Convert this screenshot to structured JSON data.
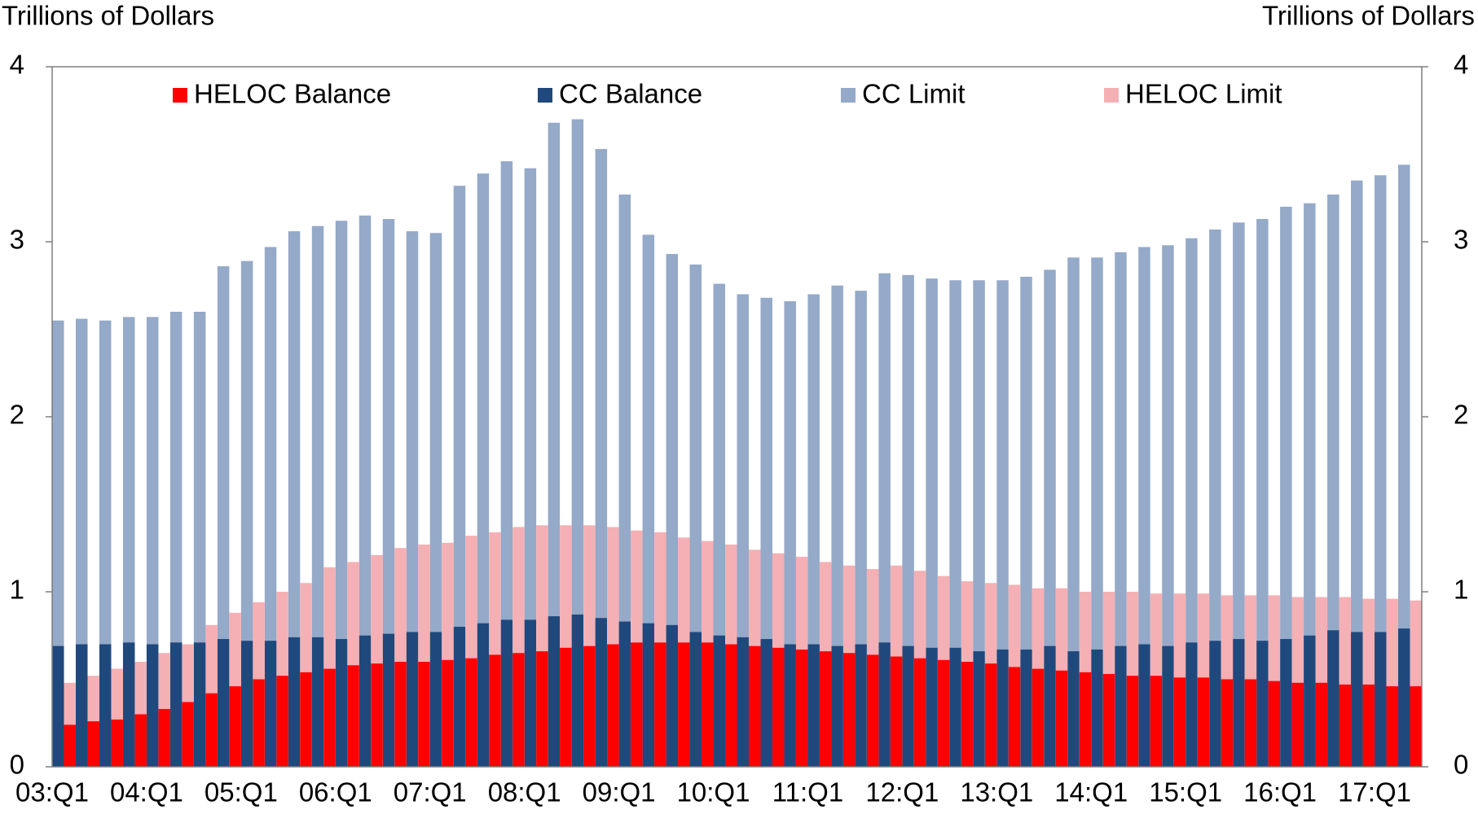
{
  "chart_data": {
    "type": "bar",
    "y_label": "Trillions of Dollars",
    "y2_label": "Trillions of Dollars",
    "categories": [
      "03:Q1",
      null,
      null,
      null,
      "04:Q1",
      null,
      null,
      null,
      "05:Q1",
      null,
      null,
      null,
      "06:Q1",
      null,
      null,
      null,
      "07:Q1",
      null,
      null,
      null,
      "08:Q1",
      null,
      null,
      null,
      "09:Q1",
      null,
      null,
      null,
      "10:Q1",
      null,
      null,
      null,
      "11:Q1",
      null,
      null,
      null,
      "12:Q1",
      null,
      null,
      null,
      "13:Q1",
      null,
      null,
      null,
      "14:Q1",
      null,
      null,
      null,
      "15:Q1",
      null,
      null,
      null,
      "16:Q1",
      null,
      null,
      null,
      "17:Q1",
      null
    ],
    "series": [
      {
        "name": "HELOC Balance",
        "color": "#ff0000",
        "values": [
          0.24,
          0.26,
          0.27,
          0.3,
          0.33,
          0.37,
          0.42,
          0.46,
          0.5,
          0.52,
          0.54,
          0.56,
          0.58,
          0.59,
          0.6,
          0.6,
          0.61,
          0.62,
          0.64,
          0.65,
          0.66,
          0.68,
          0.69,
          0.7,
          0.71,
          0.71,
          0.71,
          0.71,
          0.7,
          0.69,
          0.68,
          0.67,
          0.66,
          0.65,
          0.64,
          0.63,
          0.62,
          0.61,
          0.6,
          0.59,
          0.57,
          0.56,
          0.55,
          0.54,
          0.53,
          0.52,
          0.52,
          0.51,
          0.51,
          0.5,
          0.5,
          0.49,
          0.48,
          0.48,
          0.47,
          0.47,
          0.46,
          0.46
        ]
      },
      {
        "name": "CC Balance",
        "color": "#1f497d",
        "values": [
          0.69,
          0.7,
          0.7,
          0.71,
          0.7,
          0.71,
          0.71,
          0.73,
          0.72,
          0.72,
          0.74,
          0.74,
          0.73,
          0.75,
          0.76,
          0.77,
          0.77,
          0.8,
          0.82,
          0.84,
          0.84,
          0.86,
          0.87,
          0.85,
          0.83,
          0.82,
          0.81,
          0.77,
          0.75,
          0.74,
          0.73,
          0.7,
          0.7,
          0.69,
          0.7,
          0.71,
          0.69,
          0.68,
          0.68,
          0.66,
          0.67,
          0.67,
          0.69,
          0.66,
          0.67,
          0.69,
          0.7,
          0.69,
          0.71,
          0.72,
          0.73,
          0.72,
          0.73,
          0.75,
          0.78,
          0.77,
          0.77,
          0.79
        ]
      },
      {
        "name": "CC Limit",
        "color": "#95a9c8",
        "values": [
          2.55,
          2.56,
          2.55,
          2.57,
          2.57,
          2.6,
          2.6,
          2.86,
          2.89,
          2.97,
          3.06,
          3.09,
          3.12,
          3.15,
          3.13,
          3.06,
          3.05,
          3.32,
          3.39,
          3.46,
          3.42,
          3.68,
          3.7,
          3.53,
          3.27,
          3.04,
          2.93,
          2.87,
          2.76,
          2.7,
          2.68,
          2.66,
          2.7,
          2.75,
          2.72,
          2.82,
          2.81,
          2.79,
          2.78,
          2.78,
          2.78,
          2.8,
          2.84,
          2.91,
          2.91,
          2.94,
          2.97,
          2.98,
          3.02,
          3.07,
          3.11,
          3.13,
          3.2,
          3.22,
          3.27,
          3.35,
          3.38,
          3.44
        ]
      },
      {
        "name": "HELOC Limit",
        "color": "#f4b0b4",
        "values": [
          0.48,
          0.52,
          0.56,
          0.6,
          0.65,
          0.7,
          0.81,
          0.88,
          0.94,
          1.0,
          1.05,
          1.14,
          1.17,
          1.21,
          1.25,
          1.27,
          1.28,
          1.32,
          1.34,
          1.37,
          1.38,
          1.38,
          1.38,
          1.37,
          1.35,
          1.34,
          1.31,
          1.29,
          1.27,
          1.24,
          1.22,
          1.2,
          1.17,
          1.15,
          1.13,
          1.15,
          1.12,
          1.09,
          1.06,
          1.05,
          1.04,
          1.02,
          1.02,
          1.0,
          1.0,
          1.0,
          0.99,
          0.99,
          0.99,
          0.98,
          0.98,
          0.98,
          0.97,
          0.97,
          0.97,
          0.96,
          0.96,
          0.95
        ]
      }
    ],
    "ylim": [
      0,
      4
    ],
    "yticks": [
      0,
      1,
      2,
      3,
      4
    ],
    "y2lim": [
      0,
      4
    ],
    "y2ticks": [
      0,
      1,
      2,
      3,
      4
    ],
    "grid": false
  }
}
